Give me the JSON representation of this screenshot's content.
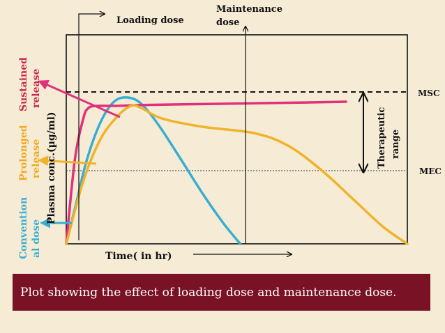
{
  "caption": "Plot showing the effect of loading dose and maintenance dose.",
  "annotations": {
    "loading_dose": "Loading dose",
    "maintenance_line1": "Maintenance",
    "maintenance_line2": "dose",
    "msc": "MSC",
    "mec": "MEC",
    "therapeutic_line1": "Therapeutic",
    "therapeutic_line2": "range",
    "sustained_line1": "Sustained",
    "sustained_line2": "release",
    "prolonged_line1": "Prolonged",
    "prolonged_line2": "release",
    "conventional_line1": "Convention",
    "conventional_line2": "al dose"
  },
  "colors": {
    "background": "#f6ecd6",
    "caption_bar": "#7a1226",
    "sustained": "#e0317a",
    "prolonged": "#f0b22a",
    "conventional": "#3aaed0",
    "axis": "#111111"
  },
  "chart_data": {
    "type": "line",
    "xlabel": "Time( in hr)",
    "ylabel": "Plasma conc.(µg/ml)",
    "xlim": [
      0,
      100
    ],
    "ylim": [
      0,
      100
    ],
    "reference_lines": [
      {
        "name": "MSC",
        "y": 81,
        "style": "dashed"
      },
      {
        "name": "MEC",
        "y": 38,
        "style": "dotted"
      }
    ],
    "series": [
      {
        "name": "Sustained release",
        "color": "#e0317a",
        "points": [
          [
            0,
            0
          ],
          [
            2.5,
            40
          ],
          [
            5,
            60
          ],
          [
            6.5,
            65
          ],
          [
            9,
            66
          ],
          [
            14,
            66
          ],
          [
            25,
            66.5
          ],
          [
            45,
            67
          ],
          [
            65,
            67.5
          ],
          [
            82,
            68
          ]
        ]
      },
      {
        "name": "Prolonged release",
        "color": "#f0b22a",
        "points": [
          [
            0,
            0
          ],
          [
            5,
            30
          ],
          [
            10,
            50
          ],
          [
            15,
            61
          ],
          [
            19,
            66
          ],
          [
            22,
            65
          ],
          [
            28,
            60
          ],
          [
            40,
            56
          ],
          [
            55,
            53
          ],
          [
            65,
            47
          ],
          [
            75,
            35
          ],
          [
            85,
            20
          ],
          [
            93,
            8
          ],
          [
            100,
            0
          ]
        ]
      },
      {
        "name": "Conventional dose",
        "color": "#3aaed0",
        "points": [
          [
            0,
            0
          ],
          [
            3,
            20
          ],
          [
            6,
            40
          ],
          [
            10,
            58
          ],
          [
            14,
            68
          ],
          [
            18,
            70
          ],
          [
            22,
            67
          ],
          [
            27,
            57
          ],
          [
            33,
            42
          ],
          [
            40,
            24
          ],
          [
            46,
            10
          ],
          [
            51,
            0
          ]
        ]
      }
    ]
  }
}
